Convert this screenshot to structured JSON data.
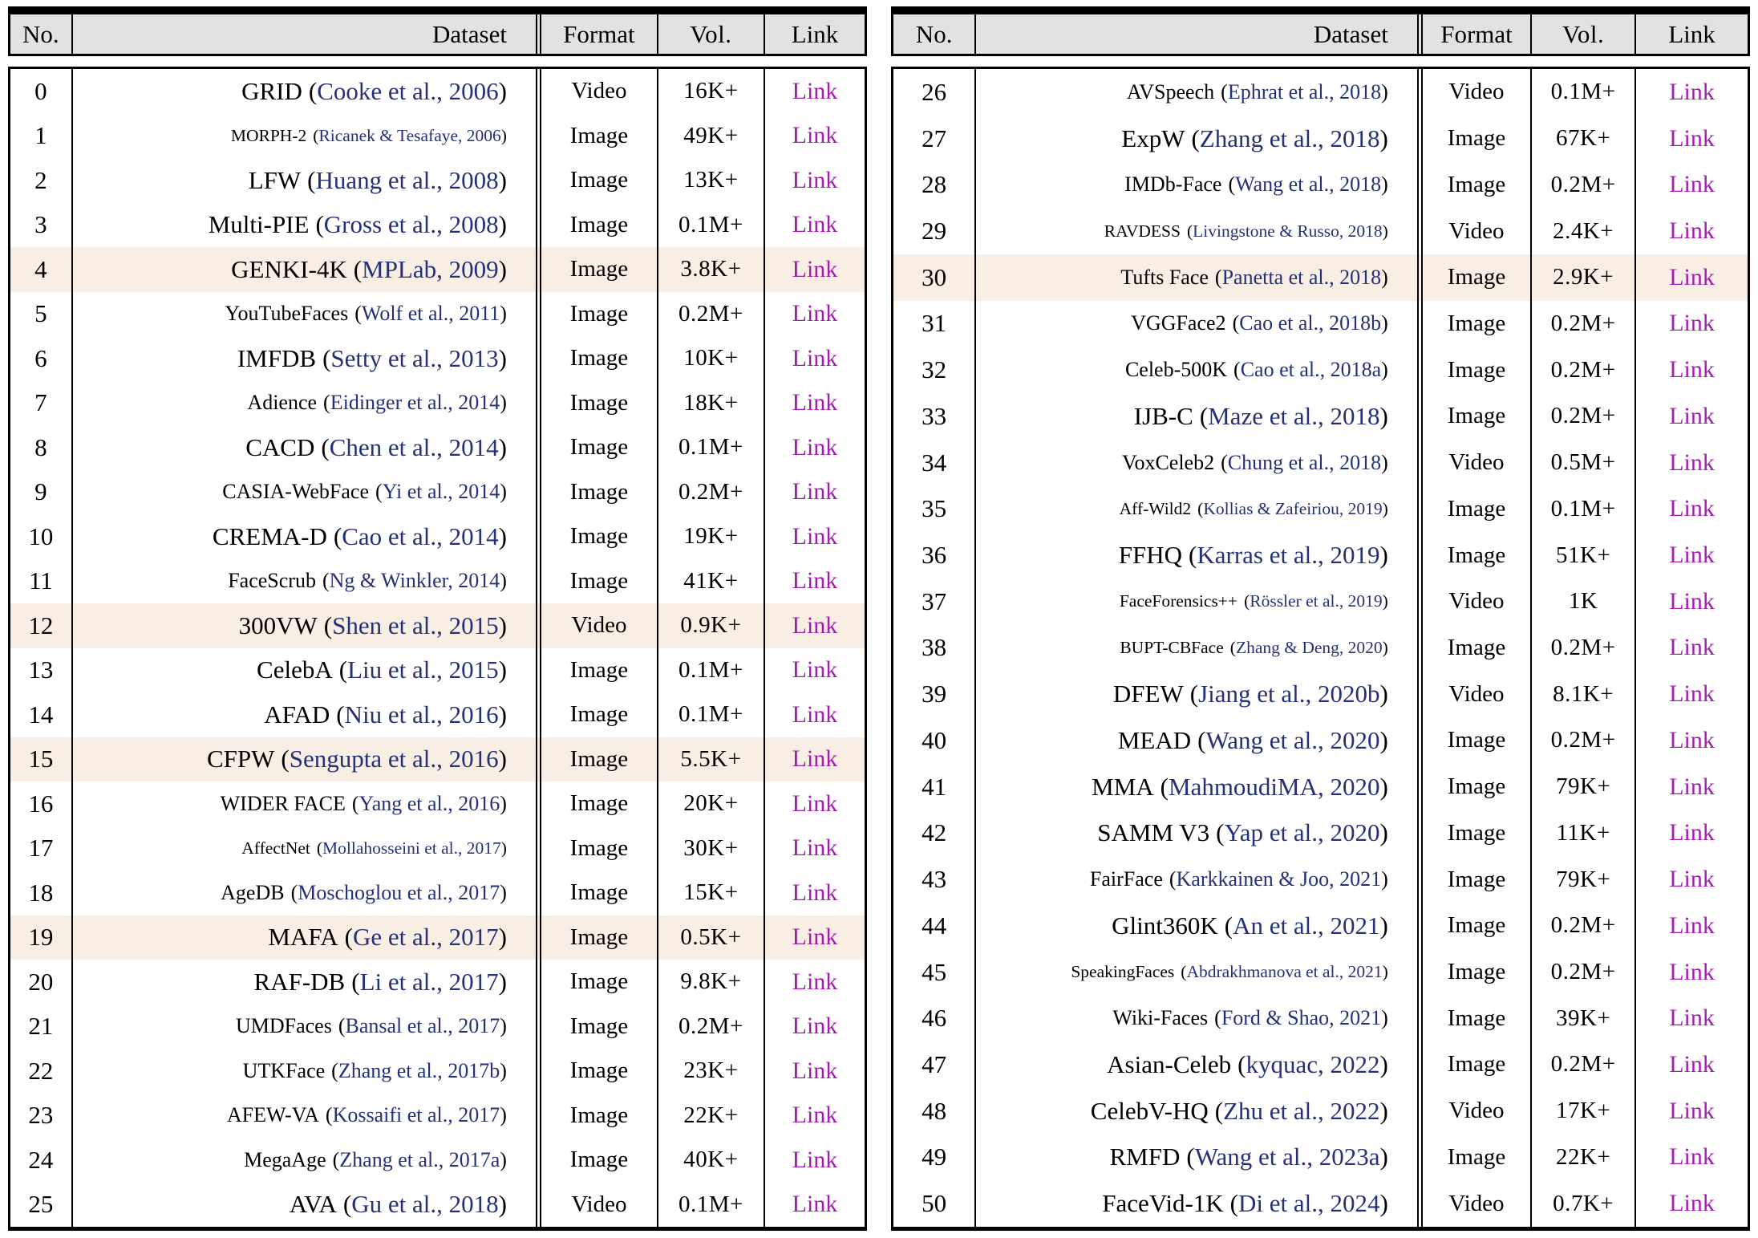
{
  "colors": {
    "border": "#000000",
    "header_bg": "#e2e2e2",
    "highlight_bg": "#f8eee3",
    "citation": "#243178",
    "link": "#a51cb0",
    "text": "#000000"
  },
  "header": {
    "no": "No.",
    "dataset": "Dataset",
    "format": "Format",
    "vol": "Vol.",
    "link": "Link"
  },
  "tables": [
    {
      "rows": [
        {
          "no": "0",
          "name": "GRID",
          "cite": "Cooke et al., 2006",
          "format": "Video",
          "vol": "16K+",
          "link": "Link",
          "hl": false,
          "sz": 1
        },
        {
          "no": "1",
          "name": "MORPH-2",
          "cite": "Ricanek & Tesafaye, 2006",
          "format": "Image",
          "vol": "49K+",
          "link": "Link",
          "hl": false,
          "sz": 3
        },
        {
          "no": "2",
          "name": "LFW",
          "cite": "Huang et al., 2008",
          "format": "Image",
          "vol": "13K+",
          "link": "Link",
          "hl": false,
          "sz": 1
        },
        {
          "no": "3",
          "name": "Multi-PIE",
          "cite": "Gross et al., 2008",
          "format": "Image",
          "vol": "0.1M+",
          "link": "Link",
          "hl": false,
          "sz": 1
        },
        {
          "no": "4",
          "name": "GENKI-4K",
          "cite": "MPLab, 2009",
          "format": "Image",
          "vol": "3.8K+",
          "link": "Link",
          "hl": true,
          "sz": 1
        },
        {
          "no": "5",
          "name": "YouTubeFaces",
          "cite": "Wolf et al., 2011",
          "format": "Image",
          "vol": "0.2M+",
          "link": "Link",
          "hl": false,
          "sz": 2
        },
        {
          "no": "6",
          "name": "IMFDB",
          "cite": "Setty et al., 2013",
          "format": "Image",
          "vol": "10K+",
          "link": "Link",
          "hl": false,
          "sz": 1
        },
        {
          "no": "7",
          "name": "Adience",
          "cite": "Eidinger et al., 2014",
          "format": "Image",
          "vol": "18K+",
          "link": "Link",
          "hl": false,
          "sz": 2
        },
        {
          "no": "8",
          "name": "CACD",
          "cite": "Chen et al., 2014",
          "format": "Image",
          "vol": "0.1M+",
          "link": "Link",
          "hl": false,
          "sz": 1
        },
        {
          "no": "9",
          "name": "CASIA-WebFace",
          "cite": "Yi et al., 2014",
          "format": "Image",
          "vol": "0.2M+",
          "link": "Link",
          "hl": false,
          "sz": 2
        },
        {
          "no": "10",
          "name": "CREMA-D",
          "cite": "Cao et al., 2014",
          "format": "Image",
          "vol": "19K+",
          "link": "Link",
          "hl": false,
          "sz": 1
        },
        {
          "no": "11",
          "name": "FaceScrub",
          "cite": "Ng & Winkler, 2014",
          "format": "Image",
          "vol": "41K+",
          "link": "Link",
          "hl": false,
          "sz": 2
        },
        {
          "no": "12",
          "name": "300VW",
          "cite": "Shen et al., 2015",
          "format": "Video",
          "vol": "0.9K+",
          "link": "Link",
          "hl": true,
          "sz": 1
        },
        {
          "no": "13",
          "name": "CelebA",
          "cite": "Liu et al., 2015",
          "format": "Image",
          "vol": "0.1M+",
          "link": "Link",
          "hl": false,
          "sz": 1
        },
        {
          "no": "14",
          "name": "AFAD",
          "cite": "Niu et al., 2016",
          "format": "Image",
          "vol": "0.1M+",
          "link": "Link",
          "hl": false,
          "sz": 1
        },
        {
          "no": "15",
          "name": "CFPW",
          "cite": "Sengupta et al., 2016",
          "format": "Image",
          "vol": "5.5K+",
          "link": "Link",
          "hl": true,
          "sz": 1
        },
        {
          "no": "16",
          "name": "WIDER FACE",
          "cite": "Yang et al., 2016",
          "format": "Image",
          "vol": "20K+",
          "link": "Link",
          "hl": false,
          "sz": 2
        },
        {
          "no": "17",
          "name": "AffectNet",
          "cite": "Mollahosseini et al., 2017",
          "format": "Image",
          "vol": "30K+",
          "link": "Link",
          "hl": false,
          "sz": 3
        },
        {
          "no": "18",
          "name": "AgeDB",
          "cite": "Moschoglou et al., 2017",
          "format": "Image",
          "vol": "15K+",
          "link": "Link",
          "hl": false,
          "sz": 2
        },
        {
          "no": "19",
          "name": "MAFA",
          "cite": "Ge et al., 2017",
          "format": "Image",
          "vol": "0.5K+",
          "link": "Link",
          "hl": true,
          "sz": 1
        },
        {
          "no": "20",
          "name": "RAF-DB",
          "cite": "Li et al., 2017",
          "format": "Image",
          "vol": "9.8K+",
          "link": "Link",
          "hl": false,
          "sz": 1
        },
        {
          "no": "21",
          "name": "UMDFaces",
          "cite": "Bansal et al., 2017",
          "format": "Image",
          "vol": "0.2M+",
          "link": "Link",
          "hl": false,
          "sz": 2
        },
        {
          "no": "22",
          "name": "UTKFace",
          "cite": "Zhang et al., 2017b",
          "format": "Image",
          "vol": "23K+",
          "link": "Link",
          "hl": false,
          "sz": 2
        },
        {
          "no": "23",
          "name": "AFEW-VA",
          "cite": "Kossaifi et al., 2017",
          "format": "Image",
          "vol": "22K+",
          "link": "Link",
          "hl": false,
          "sz": 2
        },
        {
          "no": "24",
          "name": "MegaAge",
          "cite": "Zhang et al., 2017a",
          "format": "Image",
          "vol": "40K+",
          "link": "Link",
          "hl": false,
          "sz": 2
        },
        {
          "no": "25",
          "name": "AVA",
          "cite": "Gu et al., 2018",
          "format": "Video",
          "vol": "0.1M+",
          "link": "Link",
          "hl": false,
          "sz": 1
        }
      ]
    },
    {
      "rows": [
        {
          "no": "26",
          "name": "AVSpeech",
          "cite": "Ephrat et al., 2018",
          "format": "Video",
          "vol": "0.1M+",
          "link": "Link",
          "hl": false,
          "sz": 2
        },
        {
          "no": "27",
          "name": "ExpW",
          "cite": "Zhang et al., 2018",
          "format": "Image",
          "vol": "67K+",
          "link": "Link",
          "hl": false,
          "sz": 1
        },
        {
          "no": "28",
          "name": "IMDb-Face",
          "cite": "Wang et al., 2018",
          "format": "Image",
          "vol": "0.2M+",
          "link": "Link",
          "hl": false,
          "sz": 2
        },
        {
          "no": "29",
          "name": "RAVDESS",
          "cite": "Livingstone & Russo, 2018",
          "format": "Video",
          "vol": "2.4K+",
          "link": "Link",
          "hl": false,
          "sz": 3
        },
        {
          "no": "30",
          "name": "Tufts Face",
          "cite": "Panetta et al., 2018",
          "format": "Image",
          "vol": "2.9K+",
          "link": "Link",
          "hl": true,
          "sz": 2
        },
        {
          "no": "31",
          "name": "VGGFace2",
          "cite": "Cao et al., 2018b",
          "format": "Image",
          "vol": "0.2M+",
          "link": "Link",
          "hl": false,
          "sz": 2
        },
        {
          "no": "32",
          "name": "Celeb-500K",
          "cite": "Cao et al., 2018a",
          "format": "Image",
          "vol": "0.2M+",
          "link": "Link",
          "hl": false,
          "sz": 2
        },
        {
          "no": "33",
          "name": "IJB-C",
          "cite": "Maze et al., 2018",
          "format": "Image",
          "vol": "0.2M+",
          "link": "Link",
          "hl": false,
          "sz": 1
        },
        {
          "no": "34",
          "name": "VoxCeleb2",
          "cite": "Chung et al., 2018",
          "format": "Video",
          "vol": "0.5M+",
          "link": "Link",
          "hl": false,
          "sz": 2
        },
        {
          "no": "35",
          "name": "Aff-Wild2",
          "cite": "Kollias & Zafeiriou, 2019",
          "format": "Image",
          "vol": "0.1M+",
          "link": "Link",
          "hl": false,
          "sz": 3
        },
        {
          "no": "36",
          "name": "FFHQ",
          "cite": "Karras et al., 2019",
          "format": "Image",
          "vol": "51K+",
          "link": "Link",
          "hl": false,
          "sz": 1
        },
        {
          "no": "37",
          "name": "FaceForensics++",
          "cite": "Rössler et al., 2019",
          "format": "Video",
          "vol": "1K",
          "link": "Link",
          "hl": false,
          "sz": 3
        },
        {
          "no": "38",
          "name": "BUPT-CBFace",
          "cite": "Zhang & Deng, 2020",
          "format": "Image",
          "vol": "0.2M+",
          "link": "Link",
          "hl": false,
          "sz": 3
        },
        {
          "no": "39",
          "name": "DFEW",
          "cite": "Jiang et al., 2020b",
          "format": "Video",
          "vol": "8.1K+",
          "link": "Link",
          "hl": false,
          "sz": 1
        },
        {
          "no": "40",
          "name": "MEAD",
          "cite": "Wang et al., 2020",
          "format": "Image",
          "vol": "0.2M+",
          "link": "Link",
          "hl": false,
          "sz": 1
        },
        {
          "no": "41",
          "name": "MMA",
          "cite": "MahmoudiMA, 2020",
          "format": "Image",
          "vol": "79K+",
          "link": "Link",
          "hl": false,
          "sz": 1
        },
        {
          "no": "42",
          "name": "SAMM V3",
          "cite": "Yap et al., 2020",
          "format": "Image",
          "vol": "11K+",
          "link": "Link",
          "hl": false,
          "sz": 1
        },
        {
          "no": "43",
          "name": "FairFace",
          "cite": "Karkkainen & Joo, 2021",
          "format": "Image",
          "vol": "79K+",
          "link": "Link",
          "hl": false,
          "sz": 2
        },
        {
          "no": "44",
          "name": "Glint360K",
          "cite": "An et al., 2021",
          "format": "Image",
          "vol": "0.2M+",
          "link": "Link",
          "hl": false,
          "sz": 1
        },
        {
          "no": "45",
          "name": "SpeakingFaces",
          "cite": "Abdrakhmanova et al., 2021",
          "format": "Image",
          "vol": "0.2M+",
          "link": "Link",
          "hl": false,
          "sz": 3
        },
        {
          "no": "46",
          "name": "Wiki-Faces",
          "cite": "Ford & Shao, 2021",
          "format": "Image",
          "vol": "39K+",
          "link": "Link",
          "hl": false,
          "sz": 2
        },
        {
          "no": "47",
          "name": "Asian-Celeb",
          "cite": "kyquac, 2022",
          "format": "Image",
          "vol": "0.2M+",
          "link": "Link",
          "hl": false,
          "sz": 1
        },
        {
          "no": "48",
          "name": "CelebV-HQ",
          "cite": "Zhu et al., 2022",
          "format": "Video",
          "vol": "17K+",
          "link": "Link",
          "hl": false,
          "sz": 1
        },
        {
          "no": "49",
          "name": "RMFD",
          "cite": "Wang et al., 2023a",
          "format": "Image",
          "vol": "22K+",
          "link": "Link",
          "hl": false,
          "sz": 1
        },
        {
          "no": "50",
          "name": "FaceVid-1K",
          "cite": "Di et al., 2024",
          "format": "Video",
          "vol": "0.7K+",
          "link": "Link",
          "hl": false,
          "sz": 1
        }
      ]
    }
  ]
}
